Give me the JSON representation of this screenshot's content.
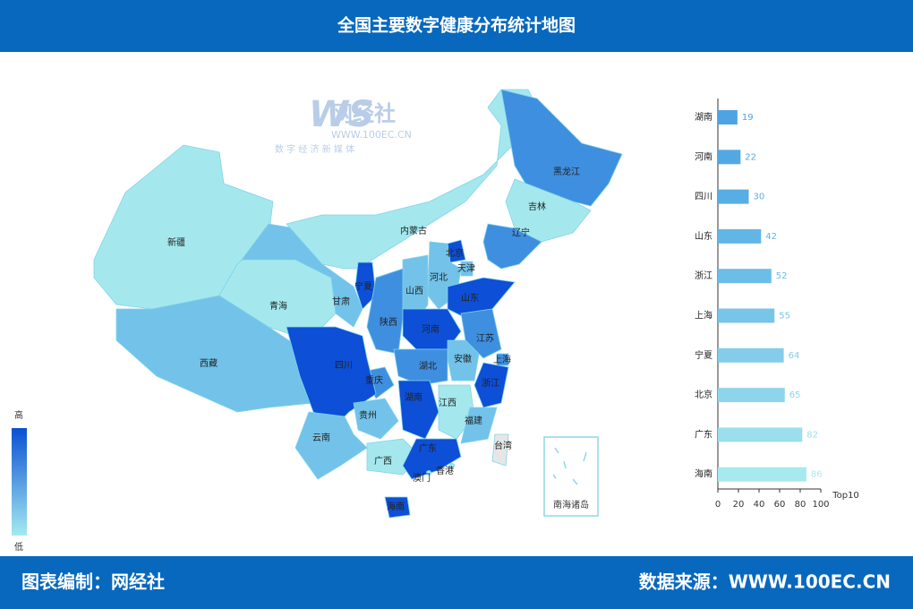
{
  "header": {
    "title": "全国主要数字健康分布统计地图"
  },
  "footer": {
    "left": "图表编制：网经社",
    "right": "数据来源：WWW.100EC.CN"
  },
  "watermark": {
    "logo": "网经社",
    "url": "WWW.100EC.CN",
    "slogan": "数 字 经 济 新 媒 体"
  },
  "legend": {
    "high": "高",
    "low": "低"
  },
  "map": {
    "inset_label": "南海诸岛",
    "regions": [
      {
        "name": "新疆",
        "color": "#a4e8ee"
      },
      {
        "name": "西藏",
        "color": "#72c2e9"
      },
      {
        "name": "青海",
        "color": "#a4e8ee"
      },
      {
        "name": "甘肃",
        "color": "#72c2e9"
      },
      {
        "name": "内蒙古",
        "color": "#a4e8ee"
      },
      {
        "name": "黑龙江",
        "color": "#3f8fe0"
      },
      {
        "name": "吉林",
        "color": "#a4e8ee"
      },
      {
        "name": "辽宁",
        "color": "#3f8fe0"
      },
      {
        "name": "北京",
        "color": "#0d4fd6"
      },
      {
        "name": "天津",
        "color": "#72c2e9"
      },
      {
        "name": "河北",
        "color": "#72c2e9"
      },
      {
        "name": "山西",
        "color": "#72c2e9"
      },
      {
        "name": "宁夏",
        "color": "#0d4fd6"
      },
      {
        "name": "陕西",
        "color": "#3f8fe0"
      },
      {
        "name": "山东",
        "color": "#0d4fd6"
      },
      {
        "name": "河南",
        "color": "#0d4fd6"
      },
      {
        "name": "江苏",
        "color": "#3f8fe0"
      },
      {
        "name": "上海",
        "color": "#3f8fe0"
      },
      {
        "name": "安徽",
        "color": "#72c2e9"
      },
      {
        "name": "湖北",
        "color": "#3f8fe0"
      },
      {
        "name": "浙江",
        "color": "#0d4fd6"
      },
      {
        "name": "重庆",
        "color": "#3f8fe0"
      },
      {
        "name": "四川",
        "color": "#0d4fd6"
      },
      {
        "name": "贵州",
        "color": "#72c2e9"
      },
      {
        "name": "湖南",
        "color": "#0d4fd6"
      },
      {
        "name": "江西",
        "color": "#a4e8ee"
      },
      {
        "name": "福建",
        "color": "#72c2e9"
      },
      {
        "name": "云南",
        "color": "#72c2e9"
      },
      {
        "name": "广西",
        "color": "#a4e8ee"
      },
      {
        "name": "广东",
        "color": "#0d4fd6"
      },
      {
        "name": "香港",
        "color": "#a4e8ee"
      },
      {
        "name": "澳门",
        "color": "#a4e8ee"
      },
      {
        "name": "海南",
        "color": "#0d4fd6"
      },
      {
        "name": "台湾",
        "color": "#e6e6e6"
      }
    ]
  },
  "chart_data": {
    "type": "hbar",
    "categories": [
      "湖南",
      "河南",
      "四川",
      "山东",
      "浙江",
      "上海",
      "宁夏",
      "北京",
      "广东",
      "海南"
    ],
    "values": [
      19,
      22,
      30,
      42,
      52,
      55,
      64,
      65,
      82,
      86
    ],
    "colors": [
      "#4ea3e2",
      "#52a8e3",
      "#58aee4",
      "#62b6e6",
      "#6cbde7",
      "#78c5e8",
      "#83cdea",
      "#8ed5eb",
      "#9bdeed",
      "#a8e8ef"
    ],
    "xlim": [
      0,
      100
    ],
    "xticks": [
      0,
      20,
      40,
      60,
      80,
      100
    ],
    "x_label": "Top10"
  }
}
